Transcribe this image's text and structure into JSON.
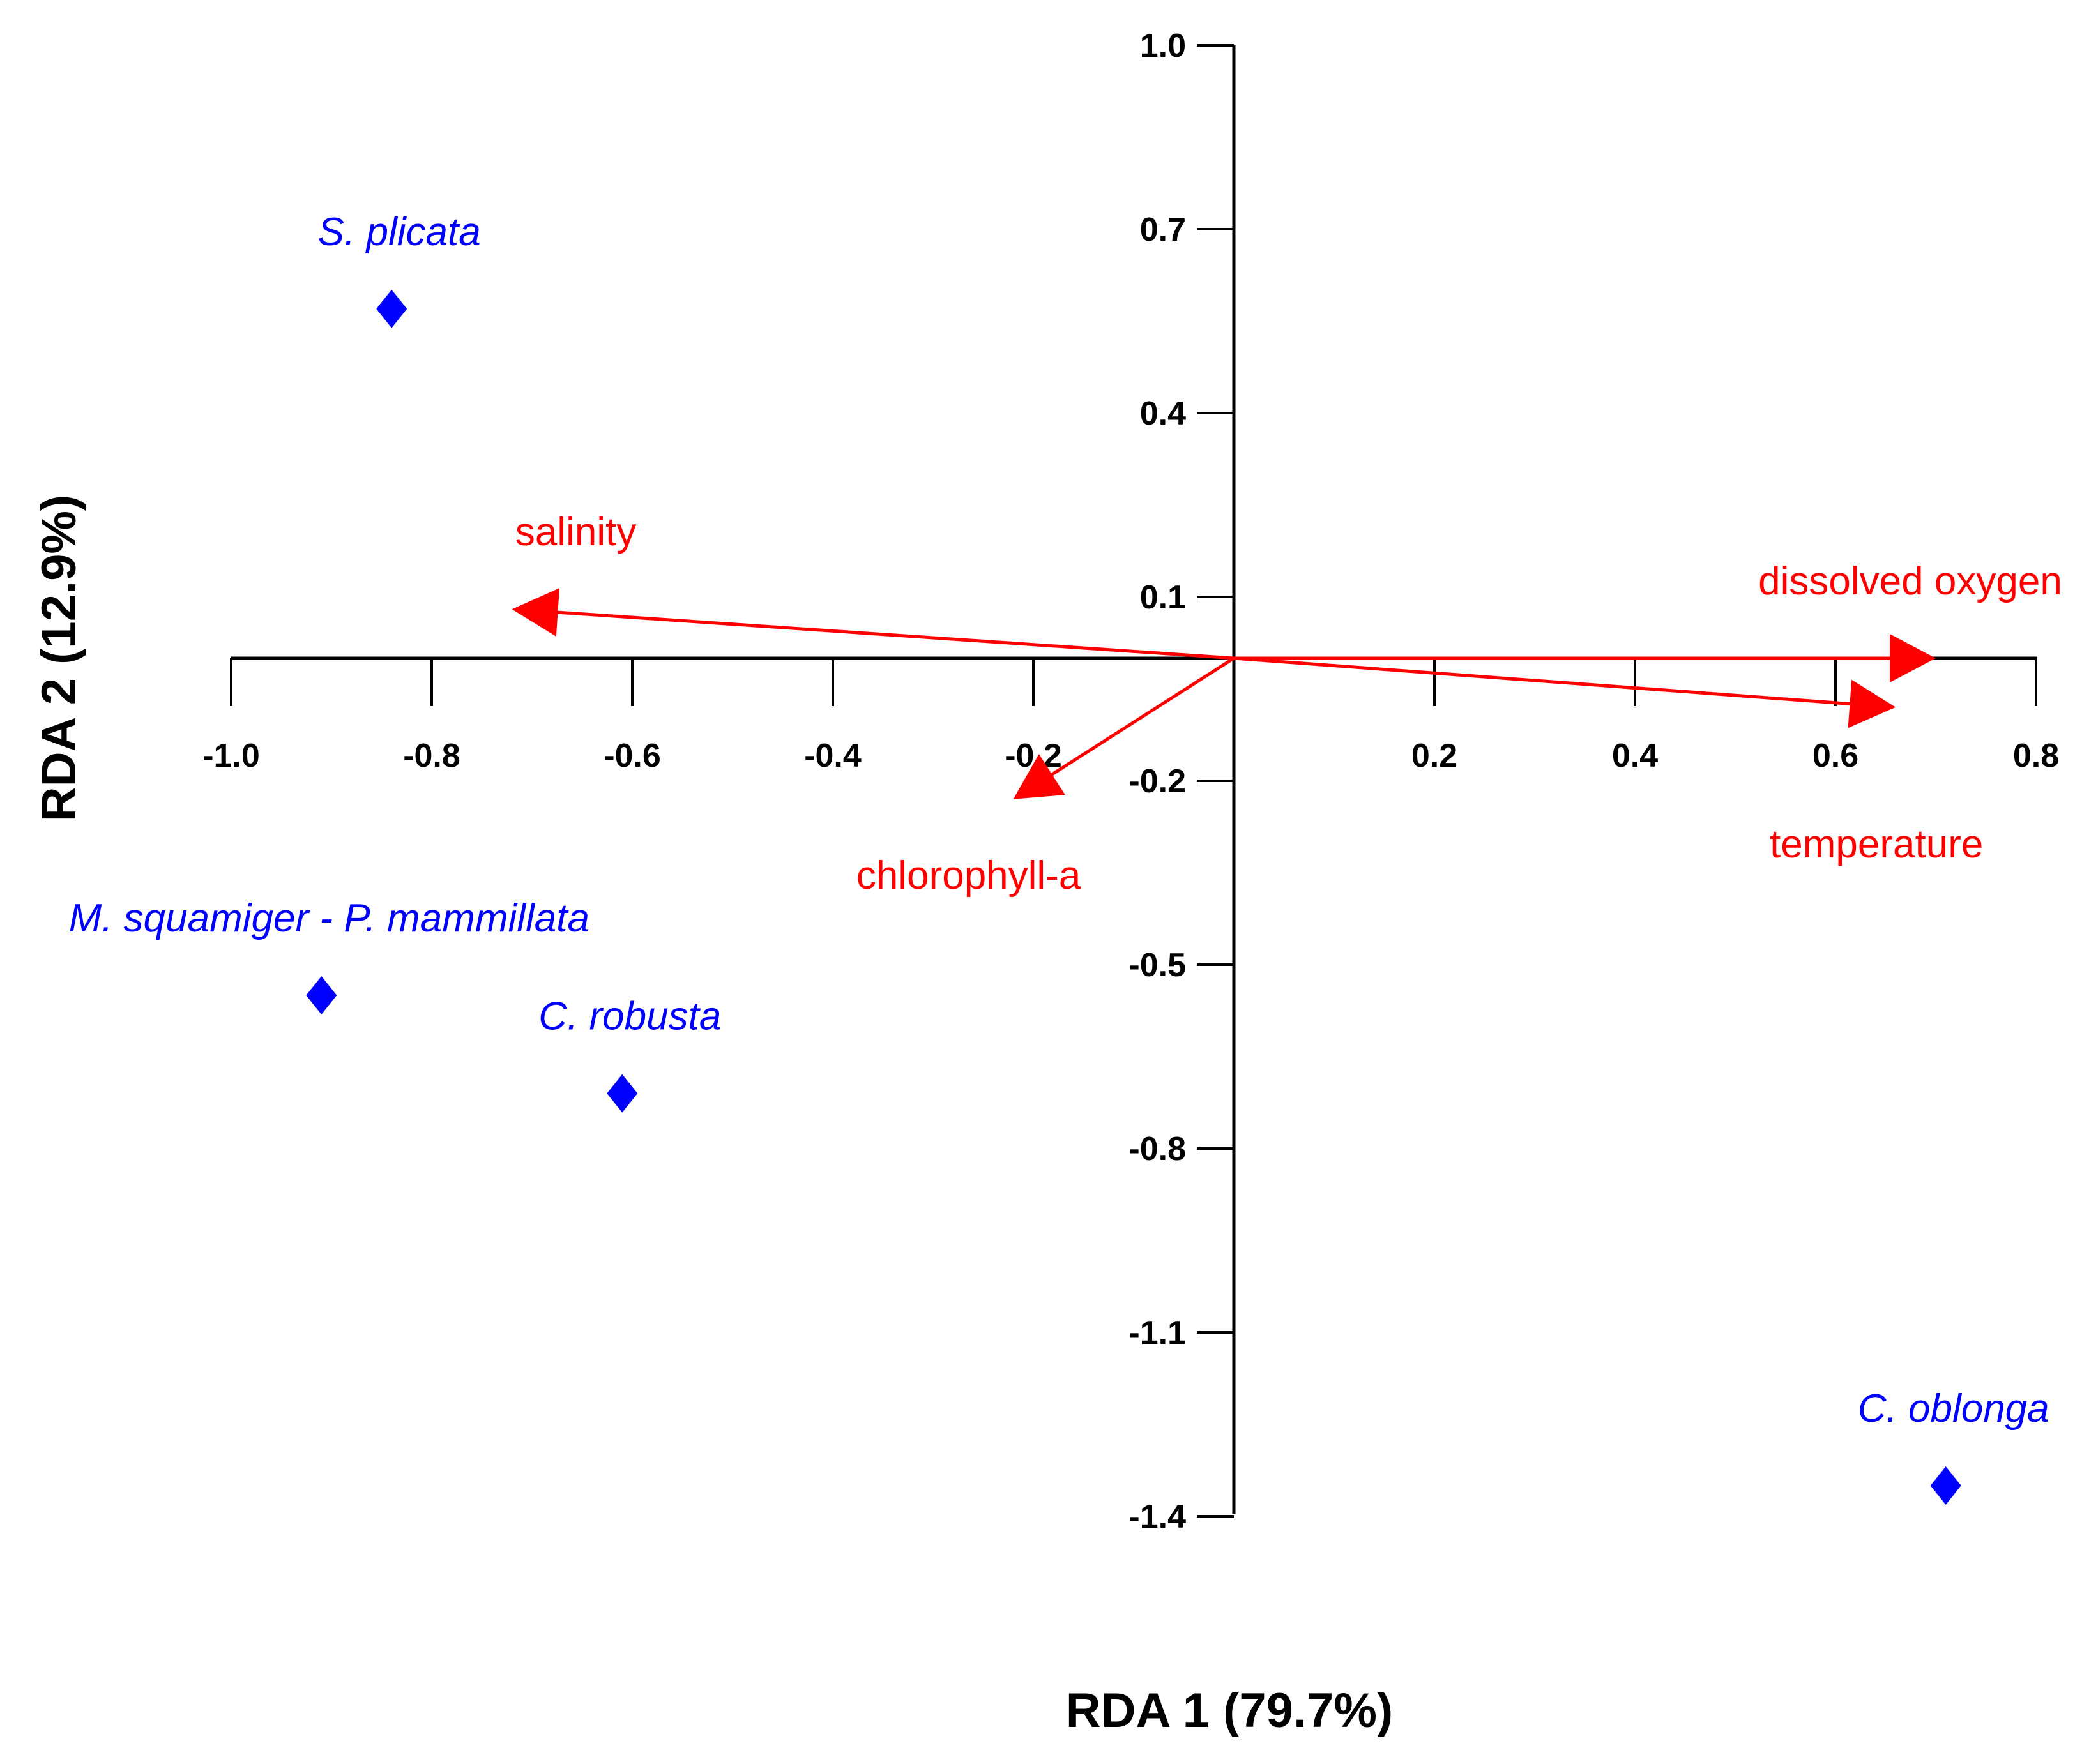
{
  "chart_data": {
    "type": "scatter",
    "title": "",
    "xlabel": "RDA 1 (79.7%)",
    "ylabel": "RDA 2 (12.9%)",
    "xlim": [
      -1.0,
      0.8
    ],
    "ylim": [
      -1.4,
      1.0
    ],
    "xticks": [
      -1.0,
      -0.8,
      -0.6,
      -0.4,
      -0.2,
      0.2,
      0.4,
      0.6,
      0.8
    ],
    "xtick_labels": [
      "-1.0",
      "-0.8",
      "-0.6",
      "-0.4",
      "-0.2",
      "0.2",
      "0.4",
      "0.6",
      "0.8"
    ],
    "yticks": [
      1.0,
      0.7,
      0.4,
      0.1,
      -0.2,
      -0.5,
      -0.8,
      -1.1,
      -1.4
    ],
    "ytick_labels": [
      "1.0",
      "0.7",
      "0.4",
      "0.1",
      "-0.2",
      "-0.5",
      "-0.8",
      "-1.1",
      "-1.4"
    ],
    "species": [
      {
        "name": "S. plicata",
        "x": -0.84,
        "y": 0.57
      },
      {
        "name": "M. squamiger - P. mammillata",
        "x": -0.91,
        "y": -0.55
      },
      {
        "name": "C. robusta",
        "x": -0.61,
        "y": -0.71
      },
      {
        "name": "C. oblonga",
        "x": 0.71,
        "y": -1.35
      }
    ],
    "environmental_vectors": [
      {
        "name": "salinity",
        "x": -0.72,
        "y": 0.08
      },
      {
        "name": "dissolved oxygen",
        "x": 0.7,
        "y": 0.0
      },
      {
        "name": "temperature",
        "x": 0.66,
        "y": -0.08
      },
      {
        "name": "chlorophyll-a",
        "x": -0.22,
        "y": -0.23
      }
    ],
    "grid": false,
    "colors": {
      "species": "#0000ff",
      "vectors": "#ff0000",
      "axes": "#000000"
    }
  }
}
